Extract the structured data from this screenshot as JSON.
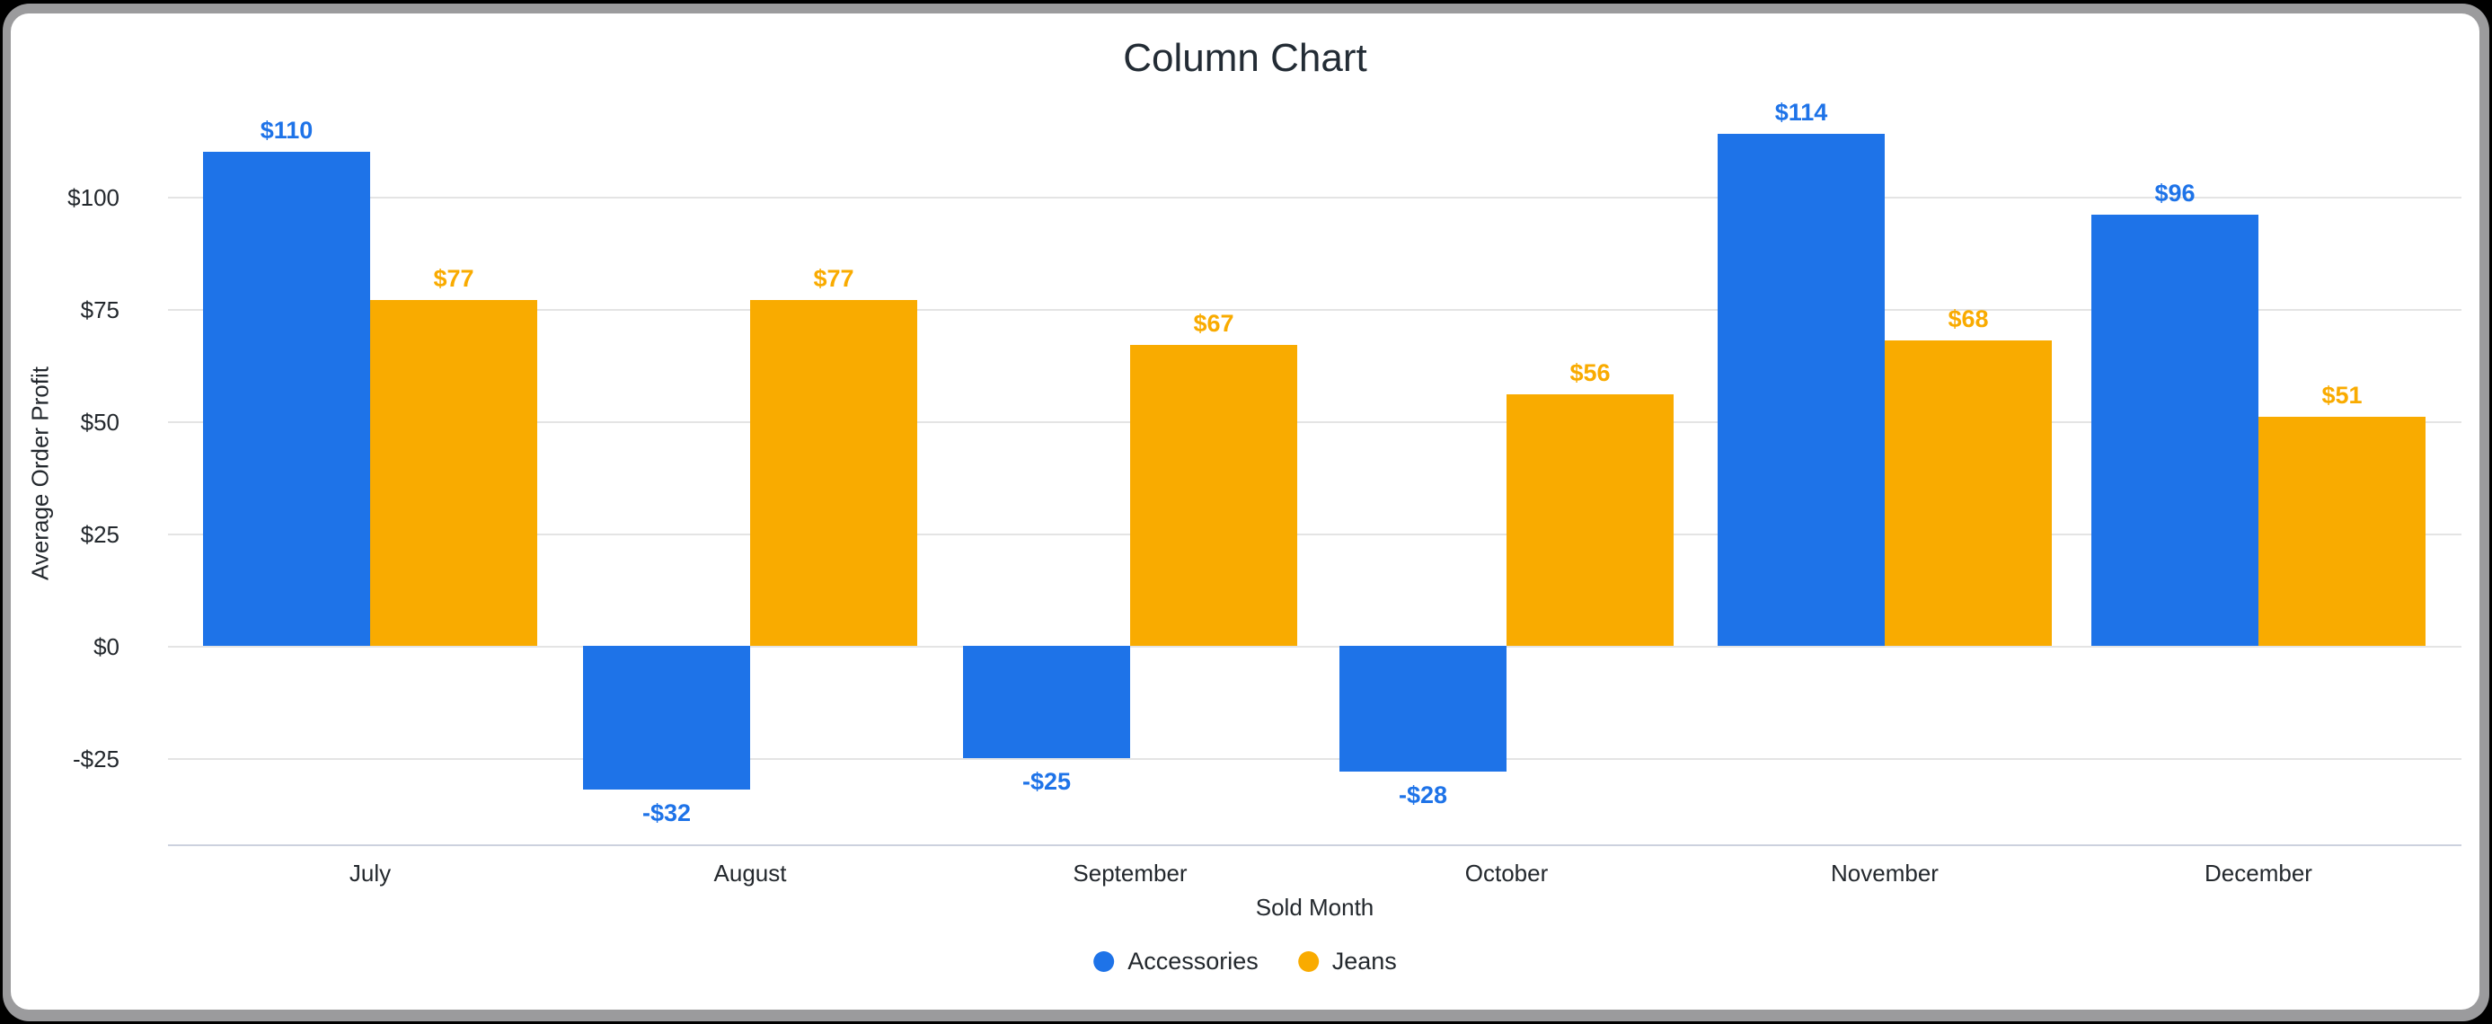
{
  "window": {
    "frame_color": "#9b9b9d",
    "background_color": "#ffffff"
  },
  "chart_data": {
    "type": "bar",
    "title": "Column Chart",
    "xlabel": "Sold Month",
    "ylabel": "Average Order Profit",
    "categories": [
      "July",
      "August",
      "September",
      "October",
      "November",
      "December"
    ],
    "series": [
      {
        "name": "Accessories",
        "color": "#1e73e8",
        "values": [
          110,
          -32,
          -25,
          -28,
          114,
          96
        ],
        "labels": [
          "$110",
          "-$32",
          "-$25",
          "-$28",
          "$114",
          "$96"
        ]
      },
      {
        "name": "Jeans",
        "color": "#f9ab00",
        "values": [
          77,
          77,
          67,
          56,
          68,
          51
        ],
        "labels": [
          "$77",
          "$77",
          "$67",
          "$56",
          "$68",
          "$51"
        ]
      }
    ],
    "y_axis": {
      "tick_labels": [
        "$100",
        "$75",
        "$50",
        "$25",
        "$0",
        "-$25"
      ],
      "tick_values": [
        100,
        75,
        50,
        25,
        0,
        -25
      ]
    },
    "ylim": [
      -44,
      118
    ],
    "grid": true,
    "legend_position": "bottom",
    "grid_color": "#e4e4e4",
    "axis_line_color": "#ccd1de"
  }
}
